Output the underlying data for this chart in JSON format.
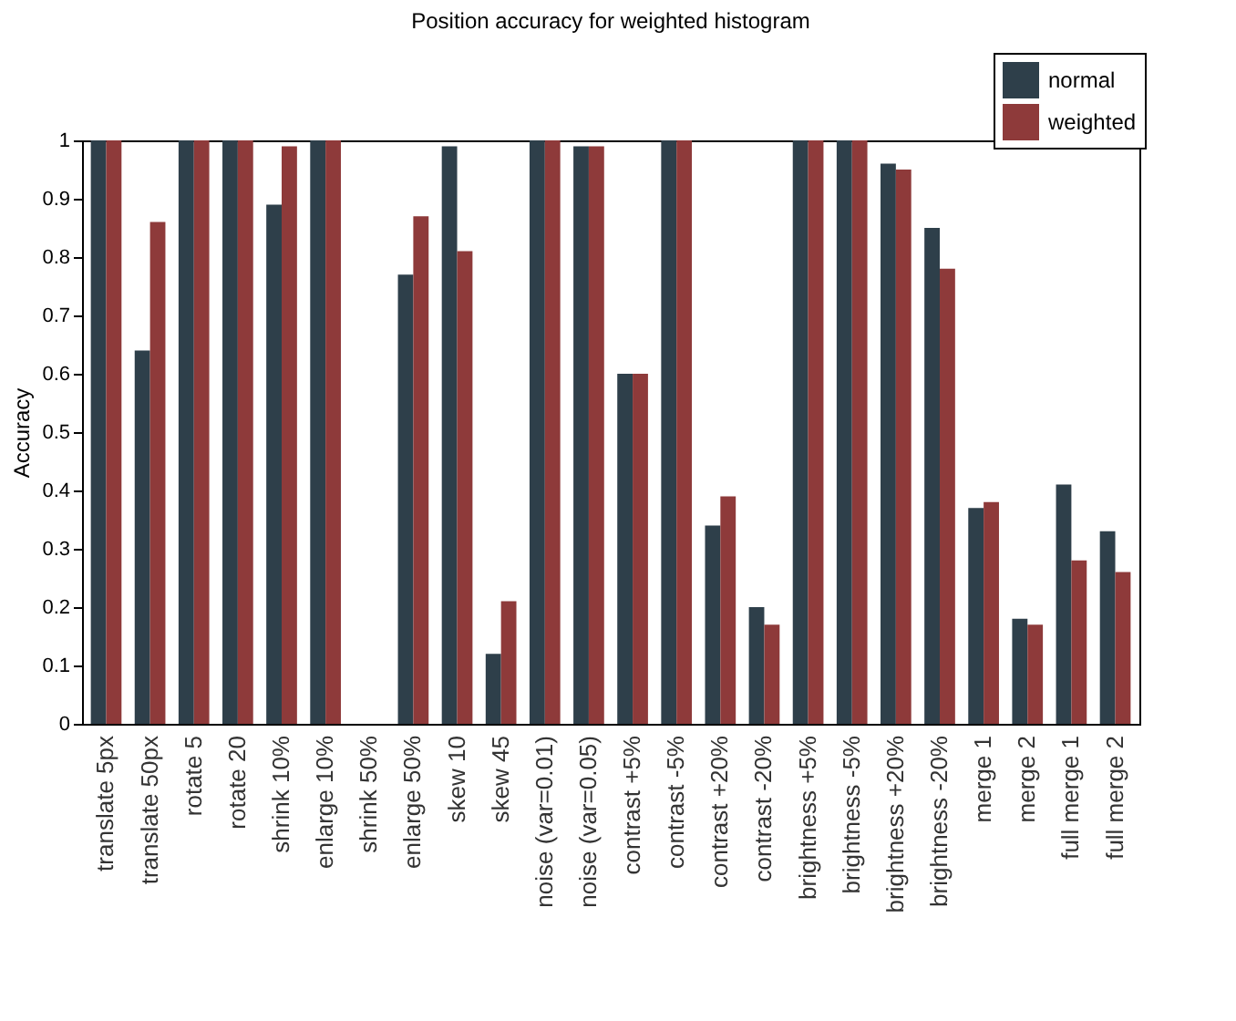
{
  "chart_data": {
    "type": "bar",
    "title": "Position accuracy for weighted histogram",
    "ylabel": "Accuracy",
    "categories": [
      "translate 5px",
      "translate 50px",
      "rotate 5",
      "rotate 20",
      "shrink 10%",
      "enlarge 10%",
      "shrink 50%",
      "enlarge 50%",
      "skew 10",
      "skew 45",
      "noise (var=0.01)",
      "noise (var=0.05)",
      "contrast +5%",
      "contrast -5%",
      "contrast +20%",
      "contrast -20%",
      "brightness +5%",
      "brightness -5%",
      "brightness +20%",
      "brightness -20%",
      "merge 1",
      "merge 2",
      "full merge 1",
      "full merge 2"
    ],
    "series": [
      {
        "name": "normal",
        "color": "#2e3f4a",
        "values": [
          1,
          0.64,
          1,
          1,
          0.89,
          1,
          0,
          0.77,
          0.99,
          0.12,
          1,
          0.99,
          0.6,
          1,
          0.34,
          0.2,
          1,
          1,
          0.96,
          0.85,
          0.37,
          0.18,
          0.41,
          0.33
        ]
      },
      {
        "name": "weighted",
        "color": "#8e3a3a",
        "values": [
          1,
          0.86,
          1,
          1,
          0.99,
          1,
          0,
          0.87,
          0.81,
          0.21,
          1,
          0.99,
          0.6,
          1,
          0.39,
          0.17,
          1,
          1,
          0.95,
          0.78,
          0.38,
          0.17,
          0.28,
          0.26
        ]
      }
    ],
    "ylim": [
      0,
      1
    ],
    "yticks": [
      0,
      0.1,
      0.2,
      0.3,
      0.4,
      0.5,
      0.6,
      0.7,
      0.8,
      0.9,
      1
    ],
    "grid": false,
    "legend": "top right"
  }
}
